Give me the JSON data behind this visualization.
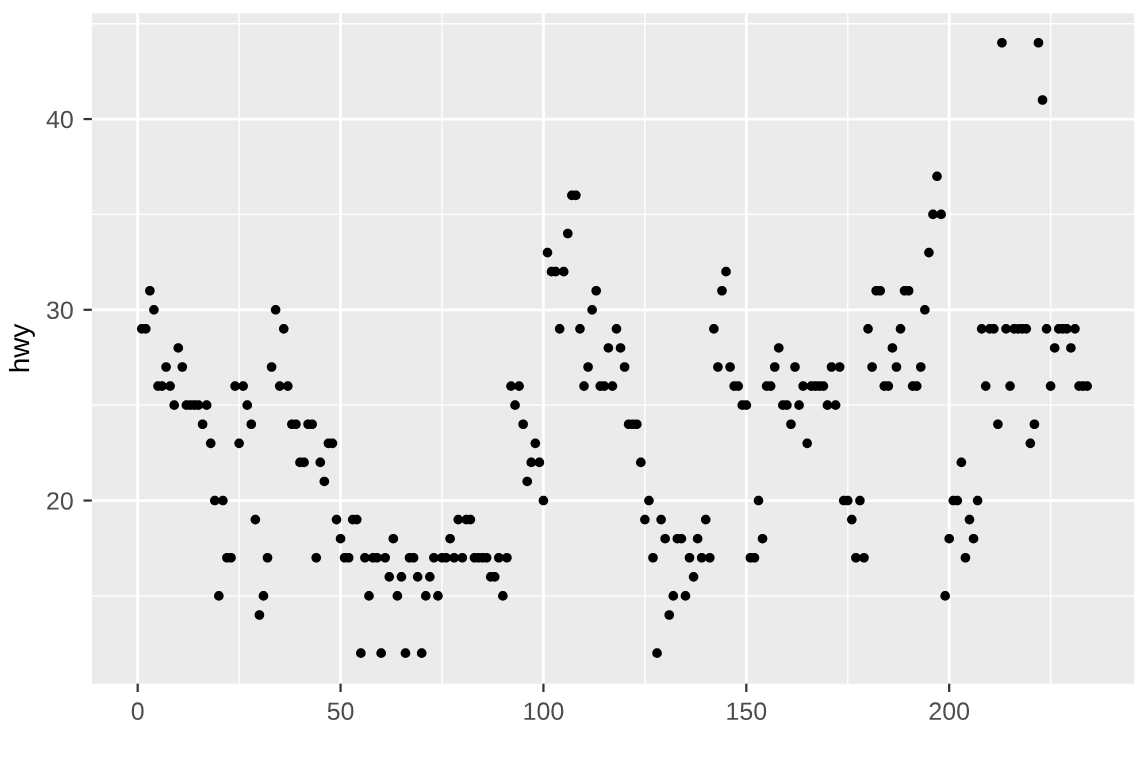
{
  "chart_data": {
    "type": "scatter",
    "ylabel": "hwy",
    "x": [
      1,
      2,
      3,
      4,
      5,
      6,
      7,
      8,
      9,
      10,
      11,
      12,
      13,
      14,
      15,
      16,
      17,
      18,
      19,
      20,
      21,
      22,
      23,
      24,
      25,
      26,
      27,
      28,
      29,
      30,
      31,
      32,
      33,
      34,
      35,
      36,
      37,
      38,
      39,
      40,
      41,
      42,
      43,
      44,
      45,
      46,
      47,
      48,
      49,
      50,
      51,
      52,
      53,
      54,
      55,
      56,
      57,
      58,
      59,
      60,
      61,
      62,
      63,
      64,
      65,
      66,
      67,
      68,
      69,
      70,
      71,
      72,
      73,
      74,
      75,
      76,
      77,
      78,
      79,
      80,
      81,
      82,
      83,
      84,
      85,
      86,
      87,
      88,
      89,
      90,
      91,
      92,
      93,
      94,
      95,
      96,
      97,
      98,
      99,
      100,
      101,
      102,
      103,
      104,
      105,
      106,
      107,
      108,
      109,
      110,
      111,
      112,
      113,
      114,
      115,
      116,
      117,
      118,
      119,
      120,
      121,
      122,
      123,
      124,
      125,
      126,
      127,
      128,
      129,
      130,
      131,
      132,
      133,
      134,
      135,
      136,
      137,
      138,
      139,
      140,
      141,
      142,
      143,
      144,
      145,
      146,
      147,
      148,
      149,
      150,
      151,
      152,
      153,
      154,
      155,
      156,
      157,
      158,
      159,
      160,
      161,
      162,
      163,
      164,
      165,
      166,
      167,
      168,
      169,
      170,
      171,
      172,
      173,
      174,
      175,
      176,
      177,
      178,
      179,
      180,
      181,
      182,
      183,
      184,
      185,
      186,
      187,
      188,
      189,
      190,
      191,
      192,
      193,
      194,
      195,
      196,
      197,
      198,
      199,
      200,
      201,
      202,
      203,
      204,
      205,
      206,
      207,
      208,
      209,
      210,
      211,
      212,
      213,
      214,
      215,
      216,
      217,
      218,
      219,
      220,
      221,
      222,
      223,
      224,
      225,
      226,
      227,
      228,
      229,
      230,
      231,
      232,
      233,
      234
    ],
    "values": [
      29,
      29,
      31,
      30,
      26,
      26,
      27,
      26,
      25,
      28,
      27,
      25,
      25,
      25,
      25,
      24,
      25,
      23,
      20,
      15,
      20,
      17,
      17,
      26,
      23,
      26,
      25,
      24,
      19,
      14,
      15,
      17,
      27,
      30,
      26,
      29,
      26,
      24,
      24,
      22,
      22,
      24,
      24,
      17,
      22,
      21,
      23,
      23,
      19,
      18,
      17,
      17,
      19,
      19,
      12,
      17,
      15,
      17,
      17,
      12,
      17,
      16,
      18,
      15,
      16,
      12,
      17,
      17,
      16,
      12,
      15,
      16,
      17,
      15,
      17,
      17,
      18,
      17,
      19,
      17,
      19,
      19,
      17,
      17,
      17,
      17,
      16,
      16,
      17,
      15,
      17,
      26,
      25,
      26,
      24,
      21,
      22,
      23,
      22,
      20,
      33,
      32,
      32,
      29,
      32,
      34,
      36,
      36,
      29,
      26,
      27,
      30,
      31,
      26,
      26,
      28,
      26,
      29,
      28,
      27,
      24,
      24,
      24,
      22,
      19,
      20,
      17,
      12,
      19,
      18,
      14,
      15,
      18,
      18,
      15,
      17,
      16,
      18,
      17,
      19,
      17,
      29,
      27,
      31,
      32,
      27,
      26,
      26,
      25,
      25,
      17,
      17,
      20,
      18,
      26,
      26,
      27,
      28,
      25,
      25,
      24,
      27,
      25,
      26,
      23,
      26,
      26,
      26,
      26,
      25,
      27,
      25,
      27,
      20,
      20,
      19,
      17,
      20,
      17,
      29,
      27,
      31,
      31,
      26,
      26,
      28,
      27,
      29,
      31,
      31,
      26,
      26,
      27,
      30,
      33,
      35,
      37,
      35,
      15,
      18,
      20,
      20,
      22,
      17,
      19,
      18,
      20,
      29,
      26,
      29,
      29,
      24,
      44,
      29,
      26,
      29,
      29,
      29,
      29,
      23,
      24,
      44,
      41,
      29,
      26,
      28,
      29,
      29,
      29,
      28,
      29,
      26,
      26,
      26
    ],
    "color": "#000000",
    "marker": "circle",
    "xlim": [
      -11.3,
      245.6
    ],
    "ylim": [
      10.4,
      45.55
    ],
    "xticks": [
      0,
      50,
      100,
      150,
      200
    ],
    "yticks": [
      20,
      30,
      40
    ],
    "grid": true
  }
}
